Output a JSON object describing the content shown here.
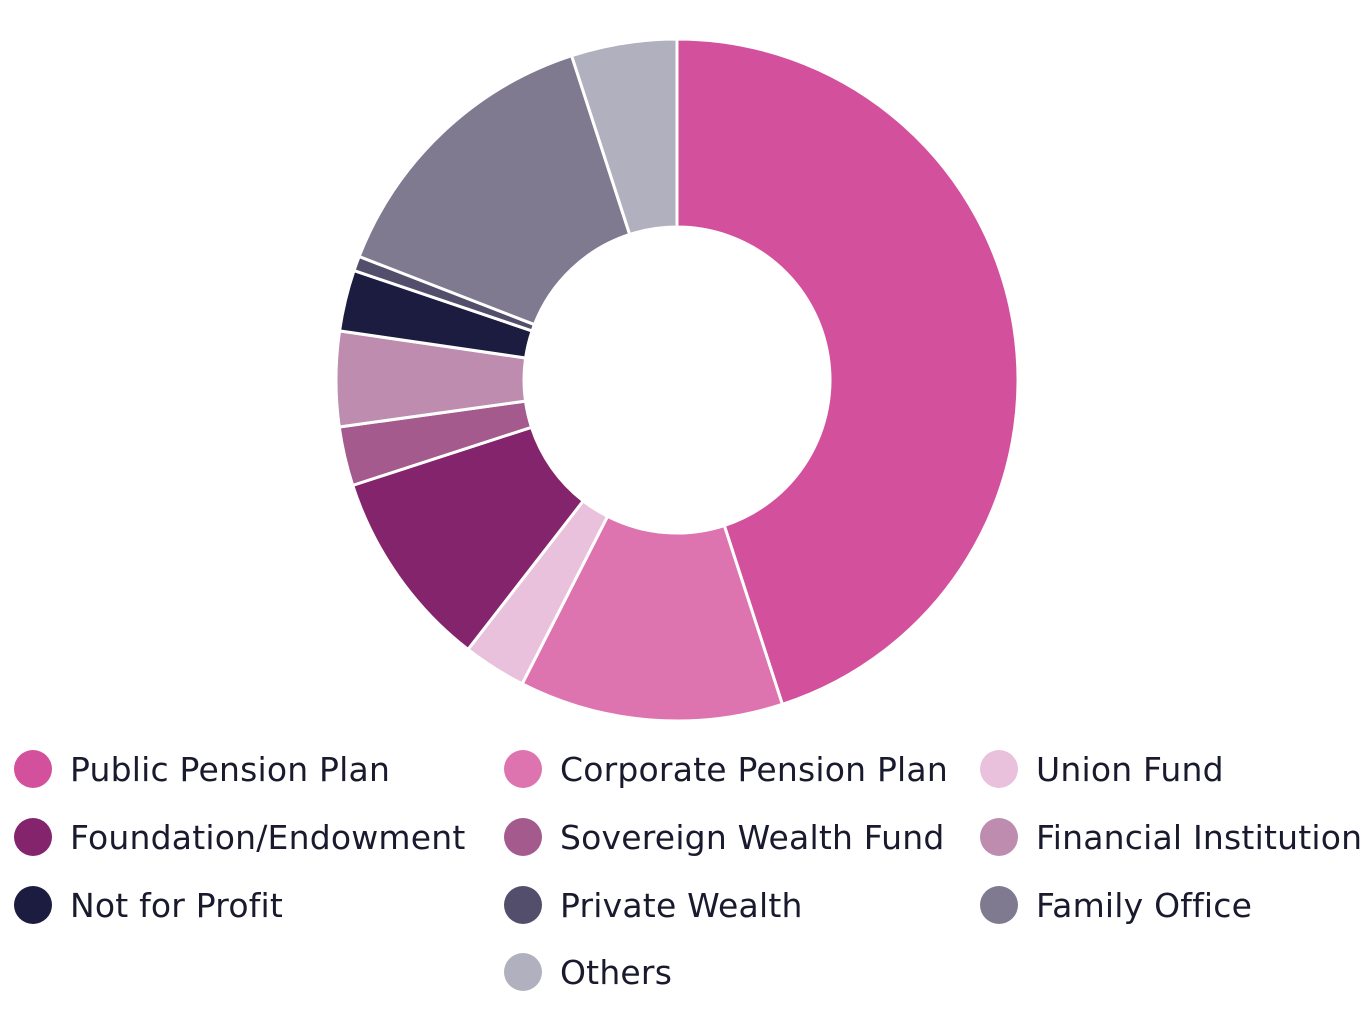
{
  "chart_data": {
    "type": "pie",
    "variant": "donut",
    "title": "",
    "legend_position": "bottom",
    "categories": [
      "Public Pension Plan",
      "Corporate Pension Plan",
      "Union Fund",
      "Foundation/Endowment",
      "Sovereign Wealth Fund",
      "Financial Institution",
      "Not for Profit",
      "Private Wealth",
      "Family Office",
      "Others"
    ],
    "values": [
      45.0,
      12.5,
      3.0,
      9.5,
      2.8,
      4.5,
      2.9,
      0.7,
      14.1,
      5.0
    ],
    "colors": [
      "#d3509c",
      "#dd74af",
      "#e9c1dc",
      "#84246c",
      "#a45a8d",
      "#bd8cae",
      "#1b1c3f",
      "#524e6b",
      "#7f7a8f",
      "#b1b0bf"
    ]
  }
}
